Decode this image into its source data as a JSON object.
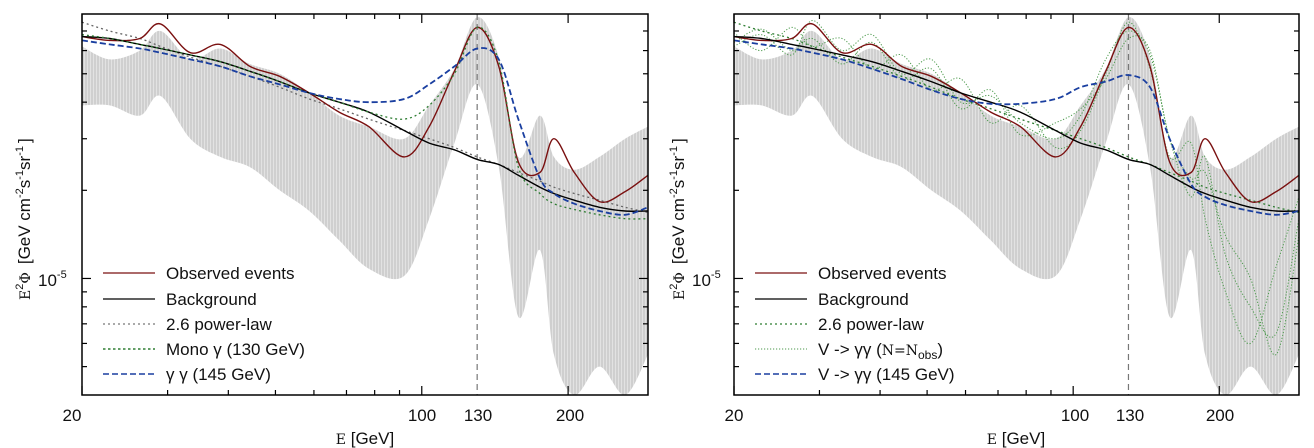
{
  "chart_data": [
    {
      "type": "line",
      "panel": "left",
      "title": "",
      "xlabel": "E [GeV]",
      "ylabel": "E^2 Φ [GeV cm^-2 s^-1 sr^-1]",
      "xscale": "log",
      "yscale": "log",
      "xlim": [
        20,
        292
      ],
      "ylim": [
        4e-06,
        8e-05
      ],
      "xticks": [
        20,
        100,
        130,
        200
      ],
      "xtick_labels": [
        "20",
        "100",
        "130",
        "200"
      ],
      "yticks": [
        1e-05
      ],
      "ytick_labels": [
        "10",
        "-5"
      ],
      "vline": 130,
      "grid": false,
      "legend_position": "bottom-left",
      "x": [
        20,
        22.8,
        26.3,
        29.0,
        33.4,
        38.5,
        44.3,
        51.0,
        58.7,
        67.6,
        77.8,
        92,
        103.6,
        116.7,
        130,
        144,
        158,
        175,
        187,
        206,
        232,
        262,
        292
      ],
      "band": {
        "name": "uncertainty band",
        "upper": [
          6.2e-05,
          5.6e-05,
          6e-05,
          7e-05,
          5.6e-05,
          6.1e-05,
          5.4e-05,
          5e-05,
          4.3e-05,
          3.6e-05,
          3.3e-05,
          3e-05,
          3.9e-05,
          5.2e-05,
          7.8e-05,
          5.7e-05,
          2.6e-05,
          3.6e-05,
          2.6e-05,
          2.35e-05,
          2.6e-05,
          3e-05,
          3.3e-05
        ],
        "lower": [
          3.9e-05,
          3.9e-05,
          3.6e-05,
          4.2e-05,
          3e-05,
          2.6e-05,
          2.4e-05,
          2e-05,
          1.7e-05,
          1.35e-05,
          1.08e-05,
          1.02e-05,
          1.6e-05,
          2.9e-05,
          4.6e-05,
          2.4e-05,
          7.4e-06,
          1.25e-05,
          5.5e-06,
          4e-06,
          5e-06,
          4e-06,
          5.5e-06
        ]
      },
      "series": [
        {
          "name": "Observed events",
          "color": "#7a1010",
          "style": "solid",
          "values": [
            6.7e-05,
            6.5e-05,
            6.6e-05,
            7.4e-05,
            5.9e-05,
            6.3e-05,
            5.3e-05,
            4.9e-05,
            4.3e-05,
            3.7e-05,
            3.3e-05,
            2.6e-05,
            3.3e-05,
            5.1e-05,
            7.2e-05,
            5.3e-05,
            2.5e-05,
            2.3e-05,
            3e-05,
            2.3e-05,
            1.83e-05,
            1.98e-05,
            2.25e-05
          ]
        },
        {
          "name": "Background",
          "color": "#000000",
          "style": "solid",
          "values": [
            6.7e-05,
            6.6e-05,
            6.3e-05,
            6.1e-05,
            5.8e-05,
            5.5e-05,
            5.1e-05,
            4.7e-05,
            4.3e-05,
            4e-05,
            3.7e-05,
            3.2e-05,
            2.9e-05,
            2.75e-05,
            2.55e-05,
            2.45e-05,
            2.25e-05,
            2.05e-05,
            1.95e-05,
            1.85e-05,
            1.75e-05,
            1.7e-05,
            1.7e-05
          ]
        },
        {
          "name": "2.6 power-law",
          "color": "#666666",
          "style": "dotted",
          "values": [
            7.5e-05,
            7e-05,
            6.6e-05,
            6.2e-05,
            5.7e-05,
            5.3e-05,
            4.9e-05,
            4.5e-05,
            4.1e-05,
            3.8e-05,
            3.5e-05,
            3.2e-05,
            3e-05,
            2.8e-05,
            2.6e-05,
            2.45e-05,
            2.3e-05,
            2.15e-05,
            2.05e-05,
            1.95e-05,
            1.85e-05,
            1.75e-05,
            1.68e-05
          ]
        },
        {
          "name": "Mono γ (130 GeV)",
          "color": "#2e7d32",
          "style": "dotted",
          "values": [
            6.8e-05,
            6.6e-05,
            6.3e-05,
            6.1e-05,
            5.8e-05,
            5.5e-05,
            5.1e-05,
            4.7e-05,
            4.3e-05,
            4e-05,
            3.7e-05,
            3.5e-05,
            3.9e-05,
            5e-05,
            7.2e-05,
            5.5e-05,
            2.4e-05,
            1.95e-05,
            1.8e-05,
            1.72e-05,
            1.65e-05,
            1.6e-05,
            1.6e-05
          ]
        },
        {
          "name": "γ γ (145 GeV)",
          "color": "#1a3fa0",
          "style": "dashed",
          "values": [
            6.5e-05,
            6.3e-05,
            6.1e-05,
            5.9e-05,
            5.6e-05,
            5.3e-05,
            4.9e-05,
            4.6e-05,
            4.3e-05,
            4.1e-05,
            4e-05,
            4.1e-05,
            4.6e-05,
            5.3e-05,
            6.1e-05,
            5.6e-05,
            3.5e-05,
            2.2e-05,
            1.95e-05,
            1.8e-05,
            1.7e-05,
            1.65e-05,
            1.75e-05
          ]
        }
      ]
    },
    {
      "type": "line",
      "panel": "right",
      "title": "",
      "xlabel": "E [GeV]",
      "ylabel": "E^2 Φ [GeV cm^-2 s^-1 sr^-1]",
      "xscale": "log",
      "yscale": "log",
      "xlim": [
        20,
        292
      ],
      "ylim": [
        4e-06,
        8e-05
      ],
      "xticks": [
        20,
        100,
        130,
        200
      ],
      "xtick_labels": [
        "20",
        "100",
        "130",
        "200"
      ],
      "yticks": [
        1e-05
      ],
      "ytick_labels": [
        "10",
        "-5"
      ],
      "vline": 130,
      "grid": false,
      "legend_position": "bottom-left",
      "x": [
        20,
        22.8,
        26.3,
        29.0,
        33.4,
        38.5,
        44.3,
        51.0,
        58.7,
        67.6,
        77.8,
        92,
        103.6,
        116.7,
        130,
        144,
        158,
        175,
        187,
        206,
        232,
        262,
        292
      ],
      "band": {
        "name": "uncertainty band",
        "upper": [
          6.2e-05,
          5.6e-05,
          6e-05,
          7e-05,
          5.6e-05,
          6.1e-05,
          5.4e-05,
          5e-05,
          4.3e-05,
          3.6e-05,
          3.3e-05,
          3e-05,
          3.9e-05,
          5.2e-05,
          7.8e-05,
          5.7e-05,
          2.6e-05,
          3.6e-05,
          2.6e-05,
          2.35e-05,
          2.6e-05,
          3e-05,
          3.3e-05
        ],
        "lower": [
          3.9e-05,
          3.9e-05,
          3.6e-05,
          4.2e-05,
          3e-05,
          2.6e-05,
          2.4e-05,
          2e-05,
          1.7e-05,
          1.35e-05,
          1.08e-05,
          1.02e-05,
          1.6e-05,
          2.9e-05,
          4.6e-05,
          2.4e-05,
          7.4e-06,
          1.25e-05,
          5.5e-06,
          4e-06,
          5e-06,
          4e-06,
          5.5e-06
        ]
      },
      "series": [
        {
          "name": "Observed events",
          "color": "#7a1010",
          "style": "solid",
          "values": [
            6.7e-05,
            6.5e-05,
            6.6e-05,
            7.4e-05,
            5.9e-05,
            6.3e-05,
            5.3e-05,
            4.9e-05,
            4.3e-05,
            3.7e-05,
            3.3e-05,
            2.6e-05,
            3.3e-05,
            5.1e-05,
            7.2e-05,
            5.3e-05,
            2.5e-05,
            2.3e-05,
            3e-05,
            2.3e-05,
            1.83e-05,
            1.98e-05,
            2.25e-05
          ]
        },
        {
          "name": "Background",
          "color": "#000000",
          "style": "solid",
          "values": [
            6.7e-05,
            6.6e-05,
            6.3e-05,
            6.1e-05,
            5.8e-05,
            5.5e-05,
            5.1e-05,
            4.7e-05,
            4.3e-05,
            4e-05,
            3.7e-05,
            3.2e-05,
            2.9e-05,
            2.75e-05,
            2.55e-05,
            2.45e-05,
            2.25e-05,
            2.05e-05,
            1.95e-05,
            1.85e-05,
            1.75e-05,
            1.7e-05,
            1.7e-05
          ]
        },
        {
          "name": "2.6 power-law",
          "color": "#2e7d32",
          "style": "dotted",
          "values": [
            7.5e-05,
            7e-05,
            6.6e-05,
            6.2e-05,
            5.7e-05,
            5.3e-05,
            4.9e-05,
            4.5e-05,
            4.1e-05,
            3.8e-05,
            3.5e-05,
            3.2e-05,
            3e-05,
            2.8e-05,
            2.6e-05,
            2.45e-05,
            2.3e-05,
            2.15e-05,
            2.05e-05,
            1.95e-05,
            1.85e-05,
            1.75e-05,
            1.68e-05
          ]
        },
        {
          "name": "V -> γγ (N=N_obs)",
          "color": "#4c9a4c",
          "style": "dotted",
          "values": [
            6.2e-05,
            6.8e-05,
            5.8e-05,
            7.6e-05,
            6e-05,
            6.8e-05,
            5e-05,
            5.6e-05,
            4e-05,
            4.2e-05,
            3.4e-05,
            3e-05,
            3.6e-05,
            5.6e-05,
            7e-05,
            5.8e-05,
            3e-05,
            1.9e-05,
            2.6e-05,
            1.2e-05,
            8e-06,
            6.5e-06,
            1.6e-05
          ],
          "extra_realizations": [
            [
              6.9e-05,
              6e-05,
              7.2e-05,
              6.2e-05,
              6.6e-05,
              5.2e-05,
              5.8e-05,
              4.4e-05,
              4.8e-05,
              3.4e-05,
              3.9e-05,
              2.8e-05,
              3.2e-05,
              5e-05,
              7.5e-05,
              5.2e-05,
              2.6e-05,
              2.9e-05,
              1.6e-05,
              9e-06,
              6e-06,
              1.1e-05,
              1.9e-05
            ],
            [
              6.4e-05,
              7.1e-05,
              6e-05,
              6.6e-05,
              5.4e-05,
              6.4e-05,
              4.8e-05,
              5.2e-05,
              3.8e-05,
              4.4e-05,
              3.1e-05,
              3.4e-05,
              3.8e-05,
              4.8e-05,
              6.6e-05,
              6e-05,
              3e-05,
              2.2e-05,
              2.3e-05,
              1.4e-05,
              1e-05,
              5.5e-06,
              1.4e-05
            ]
          ]
        },
        {
          "name": "V -> γγ (145 GeV)",
          "color": "#1a3fa0",
          "style": "dashed",
          "values": [
            6.5e-05,
            6.3e-05,
            6.1e-05,
            5.9e-05,
            5.6e-05,
            5.2e-05,
            4.8e-05,
            4.4e-05,
            4.1e-05,
            3.95e-05,
            3.95e-05,
            4.1e-05,
            4.5e-05,
            4.7e-05,
            4.95e-05,
            4.5e-05,
            3e-05,
            2.1e-05,
            1.9e-05,
            1.78e-05,
            1.7e-05,
            1.65e-05,
            1.7e-05
          ]
        }
      ]
    }
  ],
  "panels": [
    {
      "xlabel_prefix": "E",
      "xlabel_suffix": " [GeV]",
      "ylabel_prefix": "E",
      "ylabel_sup": "2",
      "ylabel_phi": "Φ",
      "ylabel_units": "[GeV cm",
      "ylabel_sup2": "-2",
      "ylabel_s": "s",
      "ylabel_sup3": "-1",
      "ylabel_sr": "sr",
      "ylabel_sup4": "-1",
      "ylabel_end": "]",
      "ytick_base": "10",
      "ytick_exp": "-5",
      "xticks": [
        "20",
        "100",
        "130",
        "200"
      ],
      "legend": [
        {
          "label": "Observed events"
        },
        {
          "label": "Background"
        },
        {
          "label": "2.6 power-law"
        },
        {
          "label": "Mono γ (130 GeV)"
        },
        {
          "label": "γ γ (145 GeV)"
        }
      ]
    },
    {
      "xlabel_prefix": "E",
      "xlabel_suffix": " [GeV]",
      "ylabel_prefix": "E",
      "ylabel_sup": "2",
      "ylabel_phi": "Φ",
      "ylabel_units": "[GeV cm",
      "ylabel_sup2": "-2",
      "ylabel_s": "s",
      "ylabel_sup3": "-1",
      "ylabel_sr": "sr",
      "ylabel_sup4": "-1",
      "ylabel_end": "]",
      "ytick_base": "10",
      "ytick_exp": "-5",
      "xticks": [
        "20",
        "100",
        "130",
        "200"
      ],
      "legend": [
        {
          "label": "Observed events"
        },
        {
          "label": "Background"
        },
        {
          "label": "2.6 power-law"
        },
        {
          "label_main": "V -> γγ (",
          "label_n": "N=N",
          "label_sub": "obs",
          "label_end": ")"
        },
        {
          "label": "V -> γγ (145 GeV)"
        }
      ]
    }
  ]
}
